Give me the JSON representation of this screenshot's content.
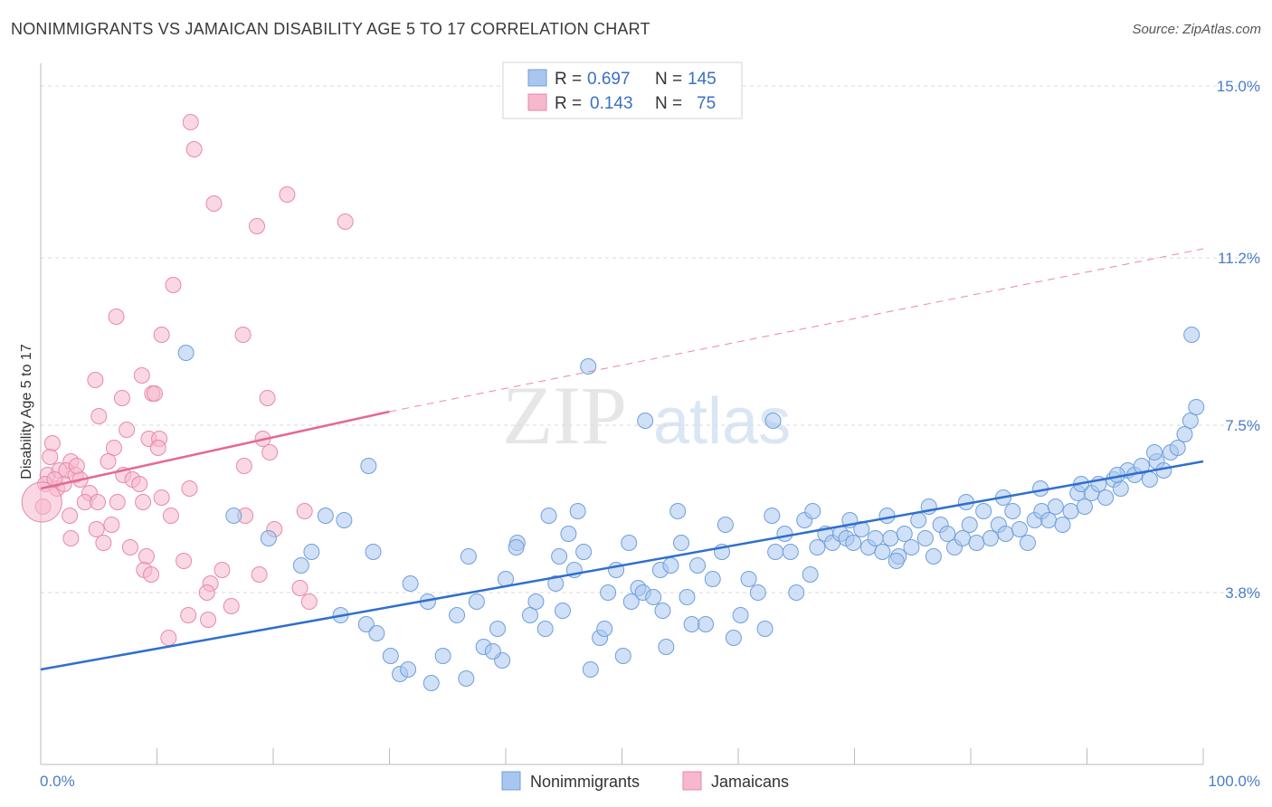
{
  "title": "NONIMMIGRANTS VS JAMAICAN DISABILITY AGE 5 TO 17 CORRELATION CHART",
  "source": "Source: ZipAtlas.com",
  "watermark": {
    "zip": "ZIP",
    "atlas": "atlas"
  },
  "colors": {
    "blue_fill": "#a9c6ef",
    "blue_stroke": "#6f9fdc",
    "blue_line": "#2f6fce",
    "pink_fill": "#f5b8cc",
    "pink_stroke": "#e889a8",
    "pink_line": "#e46a93",
    "tick_text": "#4a7cc7",
    "grid": "#d9d9d9"
  },
  "legend": {
    "rows": [
      {
        "r_label": "R =",
        "r_value": "0.697",
        "n_label": "N =",
        "n_value": "145"
      },
      {
        "r_label": "R =",
        "r_value": "0.143",
        "n_label": "N =",
        "n_value": "75"
      }
    ]
  },
  "bottom_legend": {
    "series1": "Nonimmigrants",
    "series2": "Jamaicans"
  },
  "chart_data": {
    "type": "scatter",
    "title": "NONIMMIGRANTS VS JAMAICAN DISABILITY AGE 5 TO 17 CORRELATION CHART",
    "ylabel": "Disability Age 5 to 17",
    "xlabel": "",
    "xlim": [
      0,
      100
    ],
    "ylim": [
      0,
      15.5
    ],
    "y_ticks": [
      3.8,
      7.5,
      11.2,
      15.0
    ],
    "y_tick_labels": [
      "3.8%",
      "7.5%",
      "11.2%",
      "15.0%"
    ],
    "x_tick_labels": [
      "0.0%",
      "100.0%"
    ],
    "grid": true,
    "series": [
      {
        "name": "Nonimmigrants",
        "color": "blue",
        "R": 0.697,
        "N": 145,
        "trend": {
          "x": [
            0,
            100
          ],
          "y": [
            2.1,
            6.7
          ]
        },
        "points": [
          [
            12.5,
            9.1
          ],
          [
            28.2,
            6.6
          ],
          [
            47.1,
            8.8
          ],
          [
            52.0,
            7.6
          ],
          [
            63.0,
            7.6
          ],
          [
            73.8,
            4.6
          ],
          [
            99.0,
            9.5
          ],
          [
            16.6,
            5.5
          ],
          [
            19.6,
            5.0
          ],
          [
            22.4,
            4.4
          ],
          [
            23.3,
            4.7
          ],
          [
            24.5,
            5.5
          ],
          [
            25.8,
            3.3
          ],
          [
            26.1,
            5.4
          ],
          [
            28.0,
            3.1
          ],
          [
            28.9,
            2.9
          ],
          [
            30.1,
            2.4
          ],
          [
            30.9,
            2.0
          ],
          [
            31.6,
            2.1
          ],
          [
            33.6,
            1.8
          ],
          [
            34.6,
            2.4
          ],
          [
            35.8,
            3.3
          ],
          [
            36.6,
            1.9
          ],
          [
            37.5,
            3.6
          ],
          [
            38.1,
            2.6
          ],
          [
            39.3,
            3.0
          ],
          [
            39.7,
            2.3
          ],
          [
            40.0,
            4.1
          ],
          [
            41.0,
            4.9
          ],
          [
            42.1,
            3.3
          ],
          [
            42.6,
            3.6
          ],
          [
            43.4,
            3.0
          ],
          [
            44.3,
            4.0
          ],
          [
            44.6,
            4.6
          ],
          [
            45.4,
            5.1
          ],
          [
            45.9,
            4.3
          ],
          [
            46.7,
            4.7
          ],
          [
            47.3,
            2.1
          ],
          [
            48.1,
            2.8
          ],
          [
            48.8,
            3.8
          ],
          [
            49.5,
            4.3
          ],
          [
            50.1,
            2.4
          ],
          [
            50.8,
            3.6
          ],
          [
            51.4,
            3.9
          ],
          [
            51.8,
            3.8
          ],
          [
            52.7,
            3.7
          ],
          [
            53.3,
            4.3
          ],
          [
            53.8,
            2.6
          ],
          [
            54.2,
            4.4
          ],
          [
            55.1,
            4.9
          ],
          [
            55.6,
            3.7
          ],
          [
            56.0,
            3.1
          ],
          [
            56.5,
            4.4
          ],
          [
            57.2,
            3.1
          ],
          [
            57.8,
            4.1
          ],
          [
            58.6,
            4.7
          ],
          [
            59.6,
            2.8
          ],
          [
            60.2,
            3.3
          ],
          [
            60.9,
            4.1
          ],
          [
            61.7,
            3.8
          ],
          [
            62.3,
            3.0
          ],
          [
            63.2,
            4.7
          ],
          [
            64.0,
            5.1
          ],
          [
            64.5,
            4.7
          ],
          [
            65.0,
            3.8
          ],
          [
            65.7,
            5.4
          ],
          [
            66.2,
            4.2
          ],
          [
            66.8,
            4.8
          ],
          [
            67.5,
            5.1
          ],
          [
            68.1,
            4.9
          ],
          [
            68.8,
            5.1
          ],
          [
            69.3,
            5.0
          ],
          [
            69.9,
            4.9
          ],
          [
            70.6,
            5.2
          ],
          [
            71.2,
            4.8
          ],
          [
            71.8,
            5.0
          ],
          [
            72.4,
            4.7
          ],
          [
            73.1,
            5.0
          ],
          [
            73.6,
            4.5
          ],
          [
            74.3,
            5.1
          ],
          [
            74.9,
            4.8
          ],
          [
            75.5,
            5.4
          ],
          [
            76.1,
            5.0
          ],
          [
            76.8,
            4.6
          ],
          [
            77.4,
            5.3
          ],
          [
            78.0,
            5.1
          ],
          [
            78.6,
            4.8
          ],
          [
            79.3,
            5.0
          ],
          [
            79.9,
            5.3
          ],
          [
            80.5,
            4.9
          ],
          [
            81.1,
            5.6
          ],
          [
            81.7,
            5.0
          ],
          [
            82.4,
            5.3
          ],
          [
            83.0,
            5.1
          ],
          [
            83.6,
            5.6
          ],
          [
            84.2,
            5.2
          ],
          [
            84.9,
            4.9
          ],
          [
            85.5,
            5.4
          ],
          [
            86.1,
            5.6
          ],
          [
            86.7,
            5.4
          ],
          [
            87.3,
            5.7
          ],
          [
            87.9,
            5.3
          ],
          [
            88.6,
            5.6
          ],
          [
            89.2,
            6.0
          ],
          [
            89.8,
            5.7
          ],
          [
            90.4,
            6.0
          ],
          [
            91.0,
            6.2
          ],
          [
            91.6,
            5.9
          ],
          [
            92.3,
            6.3
          ],
          [
            92.9,
            6.1
          ],
          [
            93.5,
            6.5
          ],
          [
            94.1,
            6.4
          ],
          [
            94.7,
            6.6
          ],
          [
            95.4,
            6.3
          ],
          [
            96.0,
            6.7
          ],
          [
            96.6,
            6.5
          ],
          [
            97.2,
            6.9
          ],
          [
            97.8,
            7.0
          ],
          [
            98.4,
            7.3
          ],
          [
            98.9,
            7.6
          ],
          [
            99.4,
            7.9
          ],
          [
            28.6,
            4.7
          ],
          [
            31.8,
            4.0
          ],
          [
            36.8,
            4.6
          ],
          [
            40.9,
            4.8
          ],
          [
            43.7,
            5.5
          ],
          [
            46.2,
            5.6
          ],
          [
            50.6,
            4.9
          ],
          [
            54.8,
            5.6
          ],
          [
            58.9,
            5.3
          ],
          [
            62.9,
            5.5
          ],
          [
            66.4,
            5.6
          ],
          [
            69.6,
            5.4
          ],
          [
            72.8,
            5.5
          ],
          [
            76.4,
            5.7
          ],
          [
            79.6,
            5.8
          ],
          [
            82.8,
            5.9
          ],
          [
            86.0,
            6.1
          ],
          [
            89.5,
            6.2
          ],
          [
            92.6,
            6.4
          ],
          [
            95.8,
            6.9
          ],
          [
            33.3,
            3.6
          ],
          [
            38.9,
            2.5
          ],
          [
            44.9,
            3.4
          ],
          [
            48.5,
            3.0
          ],
          [
            53.5,
            3.4
          ]
        ]
      },
      {
        "name": "Jamaicans",
        "color": "pink",
        "R": 0.143,
        "N": 75,
        "trend": {
          "x": [
            0,
            30
          ],
          "y": [
            6.1,
            7.8
          ]
        },
        "trend_dashed": {
          "x": [
            30,
            100
          ],
          "y": [
            7.8,
            11.4
          ]
        },
        "points": [
          [
            12.9,
            14.2
          ],
          [
            13.2,
            13.6
          ],
          [
            14.9,
            12.4
          ],
          [
            21.2,
            12.6
          ],
          [
            18.6,
            11.9
          ],
          [
            26.2,
            12.0
          ],
          [
            11.4,
            10.6
          ],
          [
            6.5,
            9.9
          ],
          [
            10.4,
            9.5
          ],
          [
            17.4,
            9.5
          ],
          [
            4.7,
            8.5
          ],
          [
            8.7,
            8.6
          ],
          [
            9.6,
            8.2
          ],
          [
            9.8,
            8.2
          ],
          [
            7.0,
            8.1
          ],
          [
            19.5,
            8.1
          ],
          [
            5.0,
            7.7
          ],
          [
            7.4,
            7.4
          ],
          [
            9.3,
            7.2
          ],
          [
            10.2,
            7.2
          ],
          [
            19.1,
            7.2
          ],
          [
            1.0,
            7.1
          ],
          [
            6.3,
            7.0
          ],
          [
            10.1,
            7.0
          ],
          [
            19.7,
            6.9
          ],
          [
            0.8,
            6.8
          ],
          [
            2.6,
            6.7
          ],
          [
            5.8,
            6.7
          ],
          [
            17.5,
            6.6
          ],
          [
            0.6,
            6.4
          ],
          [
            1.6,
            6.5
          ],
          [
            2.2,
            6.5
          ],
          [
            3.0,
            6.4
          ],
          [
            3.4,
            6.3
          ],
          [
            7.1,
            6.4
          ],
          [
            7.9,
            6.3
          ],
          [
            0.4,
            6.2
          ],
          [
            1.4,
            6.1
          ],
          [
            2.0,
            6.2
          ],
          [
            4.2,
            6.0
          ],
          [
            8.5,
            6.2
          ],
          [
            12.8,
            6.1
          ],
          [
            3.8,
            5.8
          ],
          [
            4.9,
            5.8
          ],
          [
            6.6,
            5.8
          ],
          [
            8.8,
            5.8
          ],
          [
            10.4,
            5.9
          ],
          [
            22.7,
            5.6
          ],
          [
            0.2,
            5.7
          ],
          [
            2.5,
            5.5
          ],
          [
            4.8,
            5.2
          ],
          [
            6.1,
            5.3
          ],
          [
            11.2,
            5.5
          ],
          [
            17.6,
            5.5
          ],
          [
            20.1,
            5.2
          ],
          [
            2.6,
            5.0
          ],
          [
            5.4,
            4.9
          ],
          [
            7.7,
            4.8
          ],
          [
            9.1,
            4.6
          ],
          [
            12.3,
            4.5
          ],
          [
            8.9,
            4.3
          ],
          [
            14.6,
            4.0
          ],
          [
            15.6,
            4.3
          ],
          [
            9.5,
            4.2
          ],
          [
            18.8,
            4.2
          ],
          [
            14.3,
            3.8
          ],
          [
            22.3,
            3.9
          ],
          [
            16.4,
            3.5
          ],
          [
            23.1,
            3.6
          ],
          [
            12.7,
            3.3
          ],
          [
            14.4,
            3.2
          ],
          [
            11.0,
            2.8
          ],
          [
            0.1,
            5.8
          ],
          [
            3.1,
            6.6
          ],
          [
            1.2,
            6.3
          ]
        ]
      }
    ]
  }
}
